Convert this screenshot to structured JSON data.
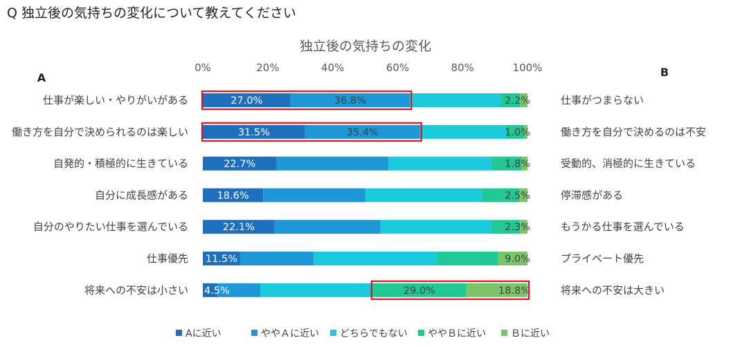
{
  "question": "Q 独立後の気持ちの変化について教えてください",
  "chart_data": {
    "type": "stacked-bar-horizontal",
    "title": "独立後の気持ちの変化",
    "left_header": "A",
    "right_header": "B",
    "x_ticks": [
      "0%",
      "20%",
      "40%",
      "60%",
      "80%",
      "100%"
    ],
    "xlim": [
      0,
      100
    ],
    "series": [
      {
        "name": "Aに近い",
        "color": "#1f6fbf"
      },
      {
        "name": "ややＡに近い",
        "color": "#1e97d6"
      },
      {
        "name": "どちらでもない",
        "color": "#1bcbdc"
      },
      {
        "name": "ややＢに近い",
        "color": "#22c796"
      },
      {
        "name": "Ｂに近い",
        "color": "#7ac565"
      }
    ],
    "rows": [
      {
        "left": "仕事が楽しい・やりがいがある",
        "right": "仕事がつまらない",
        "values": [
          27.0,
          36.8,
          27.8,
          6.2,
          2.2
        ],
        "labels": [
          "27.0%",
          "36.8%",
          "",
          "",
          "2.2%"
        ],
        "highlight": [
          0,
          1
        ]
      },
      {
        "left": "働き方を自分で決められるのは楽しい",
        "right": "働き方を自分で決めるのは不安",
        "values": [
          31.5,
          35.4,
          26.5,
          5.6,
          1.0
        ],
        "labels": [
          "31.5%",
          "35.4%",
          "",
          "",
          "1.0%"
        ],
        "highlight": [
          0,
          1
        ]
      },
      {
        "left": "自発的・積極的に生きている",
        "right": "受動的、消極的に生きている",
        "values": [
          22.7,
          34.5,
          31.8,
          9.2,
          1.8
        ],
        "labels": [
          "22.7%",
          "",
          "",
          "",
          "1.8%"
        ],
        "highlight": null
      },
      {
        "left": "自分に成長感がある",
        "right": "停滞感がある",
        "values": [
          18.6,
          31.4,
          36.0,
          11.5,
          2.5
        ],
        "labels": [
          "18.6%",
          "",
          "",
          "",
          "2.5%"
        ],
        "highlight": null
      },
      {
        "left": "自分のやりたい仕事を選んでいる",
        "right": "もうかる仕事を選んでいる",
        "values": [
          22.1,
          32.6,
          34.3,
          8.7,
          2.3
        ],
        "labels": [
          "22.1%",
          "",
          "",
          "",
          "2.3%"
        ],
        "highlight": null
      },
      {
        "left": "仕事優先",
        "right": "プライベート優先",
        "values": [
          11.5,
          22.6,
          38.2,
          18.7,
          9.0
        ],
        "labels": [
          "11.5%",
          "",
          "",
          "",
          "9.0%"
        ],
        "highlight": null
      },
      {
        "left": "将来への不安は小さい",
        "right": "将来への不安は大きい",
        "values": [
          4.5,
          13.2,
          34.5,
          29.0,
          18.8
        ],
        "labels": [
          "4.5%",
          "",
          "",
          "29.0%",
          "18.8%"
        ],
        "highlight": [
          3,
          4
        ]
      }
    ]
  }
}
